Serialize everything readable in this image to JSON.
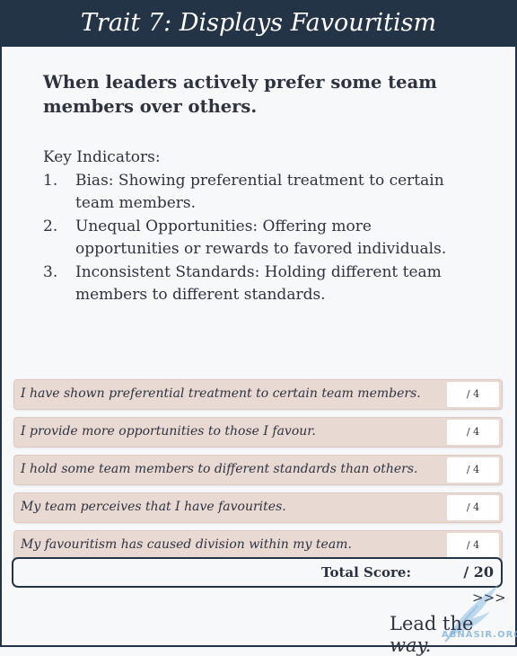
{
  "header": {
    "title": "Trait 7: Displays Favouritism"
  },
  "subtitle": "When leaders actively prefer some team members over others.",
  "indicators": {
    "title": "Key Indicators:",
    "items": [
      {
        "num": "1.",
        "text": "Bias: Showing preferential treatment to certain team members."
      },
      {
        "num": "2.",
        "text": "Unequal Opportunities: Offering more opportunities or rewards to favored individuals."
      },
      {
        "num": "3.",
        "text": "Inconsistent Standards: Holding different team members to different standards."
      }
    ]
  },
  "questions": [
    {
      "text": "I have shown preferential treatment to certain team members.",
      "score": "/ 4"
    },
    {
      "text": "I provide more opportunities to those I favour.",
      "score": "/ 4"
    },
    {
      "text": "I hold some team members to different standards than others.",
      "score": "/ 4"
    },
    {
      "text": "My team perceives that I have favourites.",
      "score": "/ 4"
    },
    {
      "text": "My favouritism has caused division within my team.",
      "score": "/ 4"
    }
  ],
  "total": {
    "label": "Total Score:",
    "value": "/ 20"
  },
  "footer": {
    "arrows": ">>>",
    "tagline_start": "Lead the ",
    "tagline_em": "way."
  },
  "watermark": {
    "text": "ABNASIR.ORG"
  },
  "colors": {
    "header_bg": "#243447",
    "row_bg": "#e8d9d2",
    "page_bg": "#f7f8fa"
  }
}
